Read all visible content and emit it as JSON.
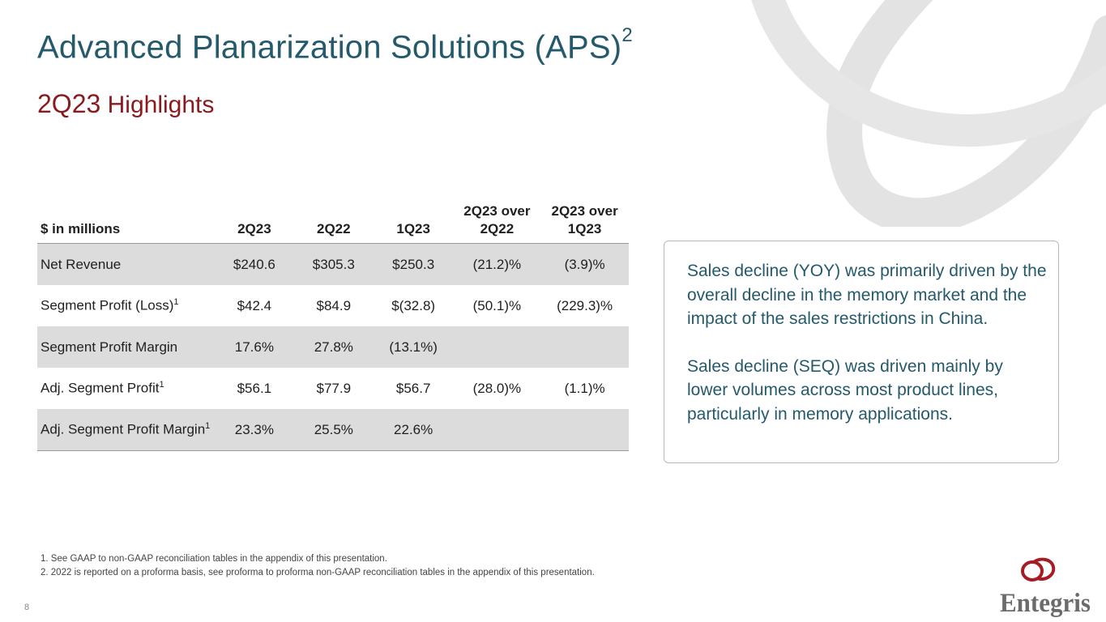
{
  "header": {
    "title": "Advanced Planarization Solutions (APS)",
    "title_sup": "2",
    "subtitle_a": "2Q23",
    "subtitle_b": " Highlights"
  },
  "table": {
    "columns": [
      "$ in millions",
      "2Q23",
      "2Q22",
      "1Q23",
      "2Q23 over",
      "2Q23 over"
    ],
    "columns_line2": [
      "",
      "",
      "",
      "",
      "2Q22",
      "1Q23"
    ],
    "rows": [
      {
        "label": "Net Revenue",
        "sup": "",
        "values": [
          "$240.6",
          "$305.3",
          "$250.3",
          "(21.2)%",
          "(3.9)%"
        ]
      },
      {
        "label": "Segment Profit (Loss)",
        "sup": "1",
        "values": [
          "$42.4",
          "$84.9",
          "$(32.8)",
          "(50.1)%",
          "(229.3)%"
        ]
      },
      {
        "label": "Segment Profit Margin",
        "sup": "",
        "values": [
          "17.6%",
          "27.8%",
          "(13.1%)",
          "",
          ""
        ]
      },
      {
        "label": "Adj. Segment Profit",
        "sup": "1",
        "values": [
          "$56.1",
          "$77.9",
          "$56.7",
          "(28.0)%",
          "(1.1)%"
        ]
      },
      {
        "label": "Adj. Segment Profit Margin",
        "sup": "1",
        "values": [
          "23.3%",
          "25.5%",
          "22.6%",
          "",
          ""
        ]
      }
    ]
  },
  "callout": {
    "para1": "Sales decline (YOY) was primarily driven by the overall decline in the memory market and the impact of the sales restrictions in China.",
    "para2": "Sales decline (SEQ) was driven mainly by lower volumes across most product lines, particularly in memory applications."
  },
  "footnotes": {
    "note1": "1.  See GAAP to non-GAAP reconciliation tables in the appendix of this presentation.",
    "note2": "2. 2022 is reported on a proforma basis, see proforma to proforma non-GAAP reconciliation tables in the appendix of this presentation."
  },
  "page_number": "8",
  "logo": {
    "wordmark": "Entegris"
  },
  "colors": {
    "title": "#245a6b",
    "subtitle": "#8b1a1f",
    "row_shade": "#dcdcdc",
    "logo": "#a51c24"
  }
}
